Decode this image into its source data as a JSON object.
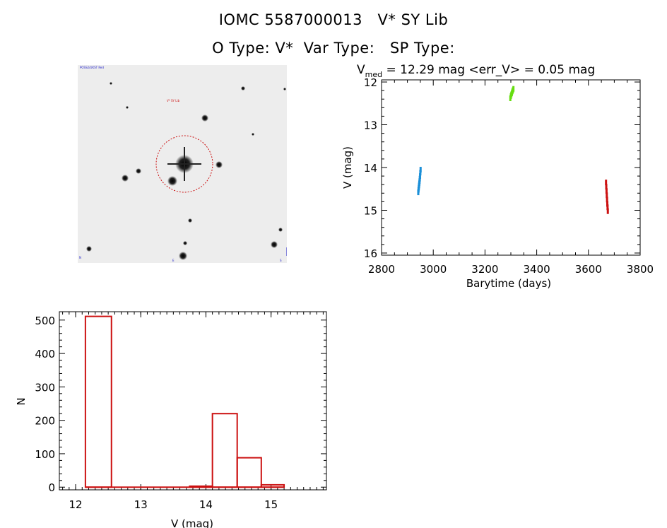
{
  "header": {
    "title": "IOMC 5587000013   V* SY Lib",
    "subtitle": "O Type: V*  Var Type:   SP Type:"
  },
  "image_panel": {
    "corner_label_tl": "POSS2/UKST Red",
    "target_label": "V* SY Lib"
  },
  "chart_data": [
    {
      "type": "scatter",
      "header": {
        "symbol": "V",
        "subscript": "med",
        "rest": " = 12.29 mag <err_V> = 0.05 mag"
      },
      "xlabel": "Barytime (days)",
      "ylabel": "V (mag)",
      "xlim": [
        2800,
        3800
      ],
      "ylim": [
        16.05,
        11.95
      ],
      "y_inverted": true,
      "xticks": [
        2800,
        3000,
        3200,
        3400,
        3600,
        3800
      ],
      "yticks": [
        12,
        13,
        14,
        15,
        16
      ],
      "series": [
        {
          "color": "#1a8fd8",
          "x": [
            2942,
            2943,
            2944,
            2945,
            2946,
            2947,
            2948,
            2949,
            2950,
            2951
          ],
          "y": [
            14.58,
            14.52,
            14.47,
            14.42,
            14.37,
            14.32,
            14.26,
            14.2,
            14.12,
            14.05
          ]
        },
        {
          "color": "#66dd11",
          "x": [
            3298,
            3300,
            3302,
            3304,
            3306,
            3308,
            3310
          ],
          "y": [
            12.38,
            12.33,
            12.29,
            12.26,
            12.22,
            12.19,
            12.16
          ]
        },
        {
          "color": "#cc1111",
          "x": [
            3668,
            3669,
            3670,
            3671,
            3672,
            3673,
            3674,
            3675
          ],
          "y": [
            14.35,
            14.45,
            14.55,
            14.65,
            14.75,
            14.85,
            14.93,
            15.02
          ]
        }
      ]
    },
    {
      "type": "bar",
      "style": "histogram-outline",
      "color": "#cc1111",
      "xlabel": "V (mag)",
      "ylabel": "N",
      "xlim": [
        11.75,
        15.85
      ],
      "ylim": [
        -8,
        525
      ],
      "xticks": [
        12,
        13,
        14,
        15
      ],
      "yticks": [
        0,
        100,
        200,
        300,
        400,
        500
      ],
      "bins": [
        {
          "x0": 12.15,
          "x1": 12.55,
          "value": 511
        },
        {
          "x0": 12.55,
          "x1": 12.95,
          "value": 0
        },
        {
          "x0": 12.95,
          "x1": 13.35,
          "value": 0
        },
        {
          "x0": 13.35,
          "x1": 13.75,
          "value": 0
        },
        {
          "x0": 13.75,
          "x1": 14.1,
          "value": 3
        },
        {
          "x0": 14.1,
          "x1": 14.48,
          "value": 220
        },
        {
          "x0": 14.48,
          "x1": 14.85,
          "value": 88
        },
        {
          "x0": 14.85,
          "x1": 15.2,
          "value": 7
        }
      ]
    }
  ]
}
